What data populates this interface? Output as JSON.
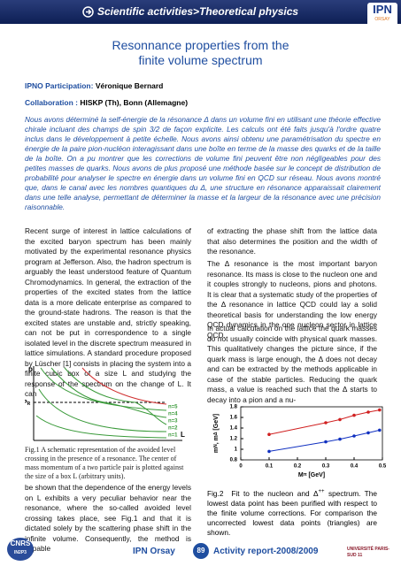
{
  "header": {
    "section": "Scientific activities>Theoretical physics",
    "logo": "IPN",
    "logo_sub": "ORSAY"
  },
  "title": {
    "line1": "Resonnance properties from the",
    "line2": "finite volume spectrum"
  },
  "participation": {
    "label": "IPNO Participation:",
    "value": "Véronique Bernard"
  },
  "collaboration": {
    "label": "Collaboration :",
    "value": "HISKP (Th), Bonn (Allemagne)"
  },
  "abstract": "Nous avons déterminé la self-énergie de la résonance Δ dans un volume fini en utilisant une théorie effective chirale incluant des champs de spin 3/2 de façon explicite. Les calculs ont été faits jusqu'à l'ordre quatre inclus dans le développement à petite échelle. Nous avons ainsi obtenu une paramétrisation du spectre en énergie de la paire pion-nucléon interagissant dans une boîte en terme de la masse des quarks et de la taille de la boîte. On a pu montrer que les corrections de volume fini peuvent être non négligeables pour des petites masses de quarks. Nous avons de plus proposé une méthode basée sur le concept de distribution de probabilité pour analyser le spectre en énergie dans un volume fini en QCD sur réseau. Nous avons montré que, dans le canal avec les nombres quantiques du Δ, une structure en résonance apparaissait clairement dans une telle analyse, permettant de déterminer la masse et la largeur de la résonance avec une précision raisonnable.",
  "left_column": [
    "Recent surge of interest in lattice calculations of the excited baryon spectrum has been mainly motivated by the experimental resonance physics program at Jefferson. Also, the hadron spectrum is arguably the least understood feature of Quantum Chromodynamics. In general, the extraction of the properties of the excited states from the lattice data is a more delicate enterprise as compared to the ground-state hadrons. The reason is that the excited states are unstable and, strictly speaking, can not be put in correspondence to a single isolated level in the discrete spectrum measured in lattice simulations. A standard procedure proposed by Lüscher [1] consists in placing the system into a finite cubic box of a size L and studying the response of the spectrum on the change of L. It can",
    "be shown that the dependence of the energy levels on L exhibits a very peculiar behavior near the resonance, where the so-called avoided level crossing takes place, see Fig.1 and that it is dictated solely by the scattering phase shift in the infinite volume. Consequently, the method is capable"
  ],
  "right_column": [
    "of extracting the phase shift from the lattice data that also determines the position and the width of the resonance.",
    "The Δ resonance is the most important baryon resonance. Its mass is close to the nucleon one and it couples strongly to nucleons, pions and photons. It is clear that a systematic study of the properties of the Δ resonance in lattice QCD could lay a solid theoretical basis for understanding the low energy QCD dynamics in the one nucleon sector in lattice QCD.",
    "In actual calculation on the lattice the quark masses do not usually coincide with physical quark masses. This qualitatively changes the picture since, if the quark mass is large enough, the Δ does not decay and can be extracted by the methods applicable in case of the stable particles. Reducing the quark mass, a value is reached such that the Δ starts to decay into a pion and a nu-"
  ],
  "figure1": {
    "y_label": "p",
    "pr_label": "P",
    "pr_sub": "R",
    "x_label": "L",
    "levels": [
      "n=5",
      "n=4",
      "n=3",
      "n=2",
      "n=1"
    ],
    "caption_label": "Fig.1",
    "caption": "A schematic representation of the avoided level crossing in the presence of a resonance. The center of mass momentum of a two particle pair is plotted against the size of a box L (arbitrary units)."
  },
  "figure2": {
    "chart_data": {
      "type": "scatter",
      "y_label_parts": [
        "m",
        "N",
        ", m",
        "Δ",
        " [GeV]"
      ],
      "x_label_parts": [
        "M",
        "π",
        " [GeV]"
      ],
      "xlim": [
        0,
        0.5
      ],
      "ylim": [
        0.8,
        1.8
      ],
      "xticks": [
        0,
        0.1,
        0.2,
        0.3,
        0.4,
        0.5
      ],
      "yticks": [
        0.8,
        1,
        1.2,
        1.4,
        1.6,
        1.8
      ],
      "series": [
        {
          "color": "#1030c0",
          "x": [
            0.1,
            0.3,
            0.35,
            0.4,
            0.45,
            0.49
          ],
          "values": [
            0.96,
            1.14,
            1.19,
            1.25,
            1.31,
            1.36
          ]
        },
        {
          "color": "#d02020",
          "x": [
            0.1,
            0.3,
            0.35,
            0.4,
            0.45,
            0.49
          ],
          "values": [
            1.28,
            1.5,
            1.56,
            1.64,
            1.7,
            1.74
          ]
        }
      ]
    },
    "caption_label": "Fig.2",
    "caption_a": "Fit to the nucleon and Δ",
    "caption_sup": "++",
    "caption_b": " spectrum. The lowest data point has been purified with respect to the finite volume corrections. For comparison the uncorrected lowest data points (triangles) are shown."
  },
  "footer": {
    "cnrs": "CNRS",
    "in2p3": "IN2P3",
    "lab": "IPN Orsay",
    "page": "89",
    "report": "Activity report-2008/2009",
    "univ": "UNIVERSITÉ PARIS-SUD 11"
  }
}
